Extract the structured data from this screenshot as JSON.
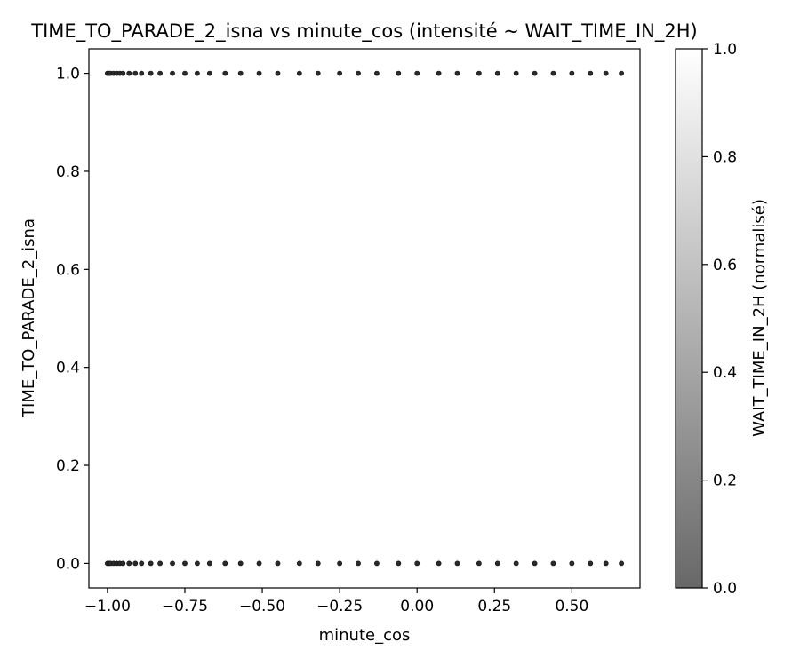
{
  "chart_data": {
    "type": "scatter",
    "title": "TIME_TO_PARADE_2_isna vs minute_cos (intensité ~ WAIT_TIME_IN_2H)",
    "xlabel": "minute_cos",
    "ylabel": "TIME_TO_PARADE_2_isna",
    "xlim": [
      -1.06,
      0.72
    ],
    "ylim": [
      -0.05,
      1.05
    ],
    "xticks": [
      -1.0,
      -0.75,
      -0.5,
      -0.25,
      0.0,
      0.25,
      0.5
    ],
    "xtick_labels": [
      "−1.00",
      "−0.75",
      "−0.50",
      "−0.25",
      "0.00",
      "0.25",
      "0.50"
    ],
    "yticks": [
      0.0,
      0.2,
      0.4,
      0.6,
      0.8,
      1.0
    ],
    "ytick_labels": [
      "0.0",
      "0.2",
      "0.4",
      "0.6",
      "0.8",
      "1.0"
    ],
    "grid": false,
    "colormap": "greys (dark = low, white = high)",
    "colorbar": {
      "label": "WAIT_TIME_IN_2H (normalisé)",
      "range": [
        0.0,
        1.0
      ],
      "ticks": [
        0.0,
        0.2,
        0.4,
        0.6,
        0.8,
        1.0
      ],
      "tick_labels": [
        "0.0",
        "0.2",
        "0.4",
        "0.6",
        "0.8",
        "1.0"
      ],
      "color_low": "#686868",
      "color_high": "#ffffff"
    },
    "series": [
      {
        "y": 1.0,
        "x": [
          -1.0,
          -0.995,
          -0.99,
          -0.98,
          -0.97,
          -0.96,
          -0.95,
          -0.93,
          -0.91,
          -0.89,
          -0.86,
          -0.83,
          -0.79,
          -0.75,
          -0.71,
          -0.67,
          -0.62,
          -0.57,
          -0.51,
          -0.45,
          -0.38,
          -0.32,
          -0.25,
          -0.19,
          -0.13,
          -0.06,
          0.0,
          0.07,
          0.13,
          0.2,
          0.26,
          0.32,
          0.38,
          0.44,
          0.5,
          0.56,
          0.61,
          0.66
        ]
      },
      {
        "y": 0.0,
        "x": [
          -1.0,
          -0.995,
          -0.99,
          -0.98,
          -0.97,
          -0.96,
          -0.95,
          -0.93,
          -0.91,
          -0.89,
          -0.86,
          -0.83,
          -0.79,
          -0.75,
          -0.71,
          -0.67,
          -0.62,
          -0.57,
          -0.51,
          -0.45,
          -0.38,
          -0.32,
          -0.25,
          -0.19,
          -0.13,
          -0.06,
          0.0,
          0.07,
          0.13,
          0.2,
          0.26,
          0.32,
          0.38,
          0.44,
          0.5,
          0.56,
          0.61,
          0.66
        ]
      }
    ],
    "point_color": "#2a2a2a"
  }
}
